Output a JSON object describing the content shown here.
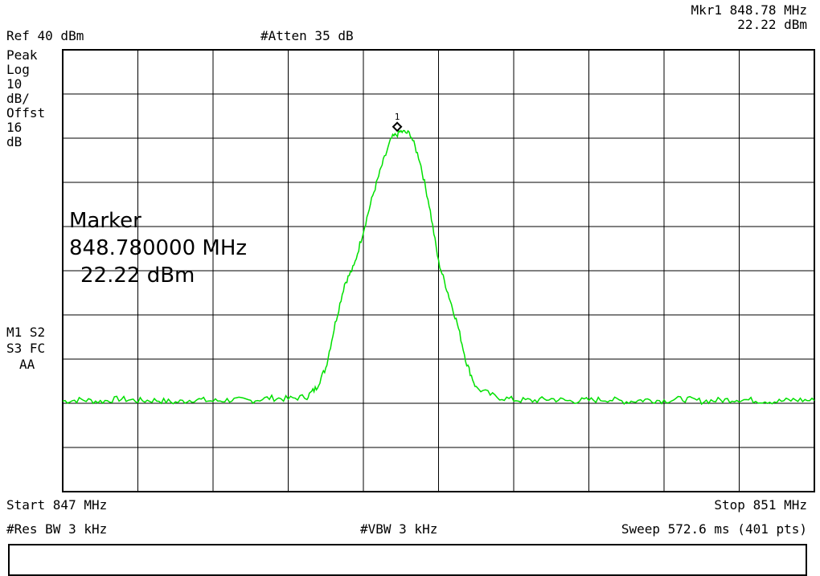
{
  "header": {
    "ref_level": "Ref 40 dBm",
    "attenuation": "#Atten 35 dB",
    "marker_readout_freq": "Mkr1  848.78 MHz",
    "marker_readout_amp": "22.22 dBm"
  },
  "scale_info": [
    "Peak",
    "Log",
    "10",
    "dB/",
    "Offst",
    "16",
    "dB"
  ],
  "status_info": [
    "M1 S2",
    "S3 FC",
    "AA"
  ],
  "marker_box": {
    "title": "Marker",
    "frequency": "848.780000 MHz",
    "amplitude": "22.22 dBm"
  },
  "footer": {
    "start": "Start 847 MHz",
    "stop": "Stop 851 MHz",
    "res_bw": "#Res BW 3 kHz",
    "vbw": "#VBW 3 kHz",
    "sweep": "Sweep 572.6 ms (401 pts)"
  },
  "colors": {
    "trace": "#00e000",
    "grid": "#000000"
  },
  "chart_data": {
    "type": "line",
    "xlim": [
      847,
      851
    ],
    "ylim": [
      -60,
      40
    ],
    "grid": true,
    "marker": {
      "label": "1",
      "x": 848.78,
      "y": 22.22
    },
    "series": [
      {
        "x": [
          847.0,
          847.1,
          847.2,
          847.3,
          847.4,
          847.5,
          847.6,
          847.7,
          847.8,
          847.9,
          848.0,
          848.1,
          848.2,
          848.3,
          848.35,
          848.4,
          848.45,
          848.5,
          848.55,
          848.6,
          848.65,
          848.7,
          848.75,
          848.8,
          848.85,
          848.9,
          848.95,
          849.0,
          849.05,
          849.1,
          849.15,
          849.2,
          849.3,
          849.4,
          849.5,
          849.6,
          849.7,
          849.8,
          849.9,
          850.0,
          850.1,
          850.2,
          850.3,
          850.4,
          850.5,
          850.6,
          850.7,
          850.8,
          850.9,
          851.0
        ],
        "y": [
          -39.5,
          -39.2,
          -39.6,
          -39.0,
          -39.4,
          -39.3,
          -39.8,
          -39.1,
          -39.5,
          -39.2,
          -39.4,
          -38.8,
          -39.0,
          -38.5,
          -36.5,
          -32.0,
          -22.0,
          -13.0,
          -9.0,
          -1.0,
          7.0,
          14.0,
          20.0,
          21.5,
          21.0,
          15.0,
          5.0,
          -8.0,
          -15.0,
          -22.0,
          -31.0,
          -36.5,
          -38.5,
          -39.2,
          -39.4,
          -39.0,
          -39.5,
          -39.3,
          -39.1,
          -39.6,
          -39.2,
          -39.4,
          -39.0,
          -39.5,
          -39.3,
          -39.1,
          -39.4,
          -39.6,
          -39.2,
          -39.4
        ]
      }
    ]
  }
}
